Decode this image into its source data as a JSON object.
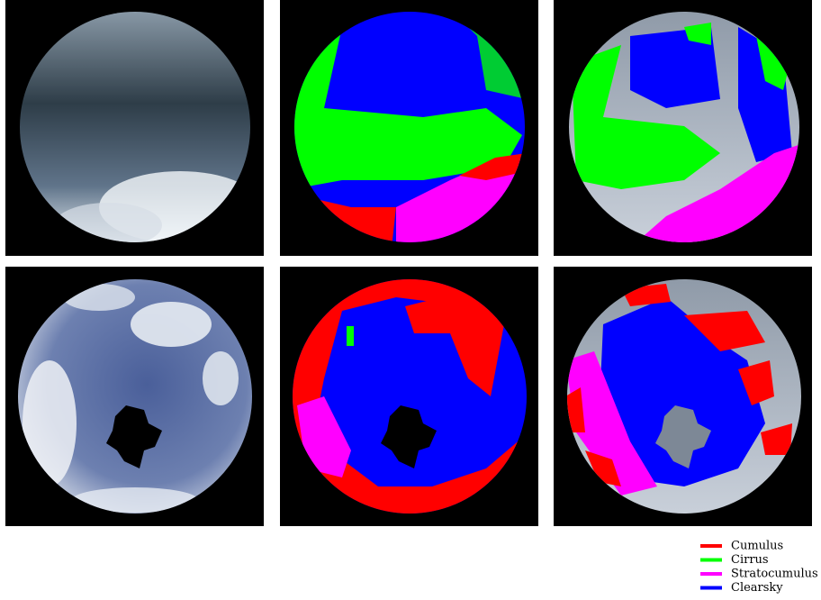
{
  "legend": {
    "items": [
      {
        "label": "Cumulus",
        "color": "#ff0000"
      },
      {
        "label": "Cirrus",
        "color": "#00ff00"
      },
      {
        "label": "Stratocumulus",
        "color": "#ff00ff"
      },
      {
        "label": "Clearsky",
        "color": "#0000ff"
      }
    ]
  }
}
